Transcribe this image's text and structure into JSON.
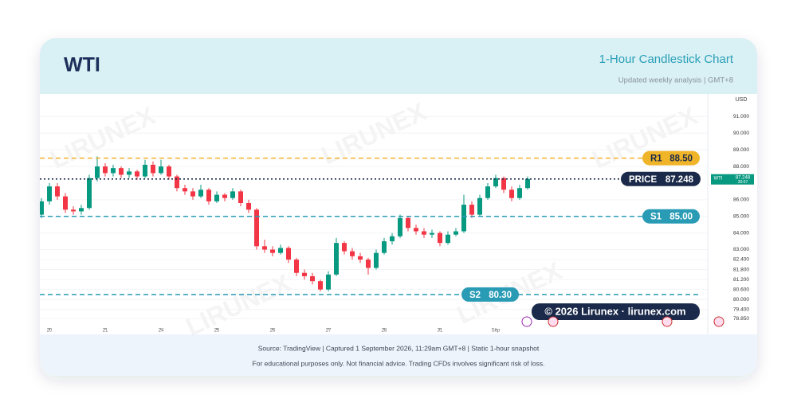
{
  "header": {
    "title": "WTI",
    "subtitle": "1-Hour Candlestick Chart",
    "note": "Updated weekly analysis | GMT+8"
  },
  "chart_data": {
    "type": "candlestick",
    "categories": [
      null,
      "20",
      null,
      null,
      null,
      null,
      null,
      null,
      "21",
      null,
      null,
      null,
      null,
      null,
      null,
      "24",
      null,
      null,
      null,
      null,
      null,
      null,
      "25",
      null,
      null,
      null,
      null,
      null,
      null,
      "26",
      null,
      null,
      null,
      null,
      null,
      null,
      "27",
      null,
      null,
      null,
      null,
      null,
      null,
      "28",
      null,
      null,
      null,
      null,
      null,
      null,
      "31",
      null,
      null,
      null,
      null,
      null,
      null,
      "Sep",
      null,
      null,
      null,
      null
    ],
    "open": [
      85.1,
      85.9,
      86.8,
      86.2,
      85.4,
      85.3,
      85.5,
      87.3,
      88.0,
      87.6,
      87.9,
      87.5,
      87.7,
      87.4,
      88.1,
      87.6,
      88.0,
      87.4,
      86.7,
      86.5,
      86.2,
      86.6,
      85.9,
      86.3,
      86.1,
      86.5,
      85.8,
      85.4,
      83.2,
      83.0,
      82.8,
      83.1,
      82.4,
      81.6,
      81.4,
      81.1,
      80.6,
      81.5,
      83.4,
      82.9,
      82.6,
      82.4,
      81.9,
      82.8,
      83.5,
      83.8,
      84.9,
      84.3,
      84.1,
      83.9,
      84.0,
      83.4,
      83.9,
      84.1,
      85.7,
      85.1,
      86.1,
      86.8,
      87.3,
      86.6,
      86.1,
      86.7
    ],
    "high": [
      86.1,
      87.0,
      87.0,
      86.4,
      85.6,
      85.7,
      87.5,
      88.6,
      88.2,
      88.1,
      88.0,
      87.9,
      87.8,
      88.4,
      88.3,
      88.4,
      88.1,
      87.5,
      86.9,
      86.7,
      86.9,
      86.7,
      86.5,
      86.4,
      86.7,
      86.6,
      86.0,
      85.5,
      83.6,
      83.2,
      83.3,
      83.2,
      82.5,
      81.8,
      81.6,
      81.2,
      81.7,
      83.7,
      83.5,
      83.1,
      82.8,
      82.5,
      83.0,
      83.7,
      84.0,
      85.1,
      85.0,
      84.5,
      84.3,
      84.2,
      84.1,
      84.1,
      84.3,
      86.3,
      85.9,
      86.3,
      87.0,
      87.5,
      87.4,
      86.8,
      86.9,
      87.4
    ],
    "low": [
      84.9,
      85.7,
      86.0,
      85.2,
      85.1,
      85.1,
      85.4,
      87.1,
      87.4,
      87.4,
      87.3,
      87.3,
      87.2,
      87.3,
      87.4,
      87.5,
      87.2,
      86.5,
      86.3,
      86.0,
      86.1,
      85.7,
      85.8,
      85.9,
      86.0,
      85.6,
      85.2,
      83.0,
      82.8,
      82.6,
      82.7,
      82.2,
      81.4,
      81.2,
      80.9,
      80.5,
      80.5,
      81.4,
      82.7,
      82.4,
      82.2,
      81.5,
      81.8,
      82.7,
      83.3,
      83.7,
      84.1,
      83.9,
      83.7,
      83.7,
      83.2,
      83.3,
      83.8,
      84.0,
      84.9,
      85.0,
      86.0,
      86.7,
      86.4,
      85.9,
      86.0,
      86.6
    ],
    "close": [
      85.9,
      86.8,
      86.2,
      85.4,
      85.3,
      85.5,
      87.3,
      88.0,
      87.6,
      87.9,
      87.5,
      87.7,
      87.4,
      88.1,
      87.6,
      88.0,
      87.4,
      86.7,
      86.5,
      86.2,
      86.6,
      85.9,
      86.3,
      86.1,
      86.5,
      85.8,
      85.4,
      83.2,
      83.0,
      82.8,
      83.1,
      82.4,
      81.6,
      81.4,
      81.1,
      80.6,
      81.5,
      83.4,
      82.9,
      82.6,
      82.4,
      81.9,
      82.8,
      83.5,
      83.8,
      84.9,
      84.3,
      84.1,
      83.9,
      84.0,
      83.4,
      83.9,
      84.1,
      85.7,
      85.1,
      86.1,
      86.8,
      87.3,
      86.6,
      86.1,
      86.7,
      87.25
    ],
    "up_color": "#089981",
    "down_color": "#f23645",
    "ylim": [
      77.9,
      92.36
    ],
    "yticks": [
      {
        "value": 91,
        "label": "91.000"
      },
      {
        "value": 90,
        "label": "90.000"
      },
      {
        "value": 89,
        "label": "89.000"
      },
      {
        "value": 88,
        "label": "88.000"
      },
      {
        "value": 86,
        "label": "86.000"
      },
      {
        "value": 85,
        "label": "85.000"
      },
      {
        "value": 84,
        "label": "84.000"
      },
      {
        "value": 83,
        "label": "83.000"
      },
      {
        "value": 82.4,
        "label": "82.400"
      },
      {
        "value": 81.8,
        "label": "81.800"
      },
      {
        "value": 81.2,
        "label": "81.200"
      },
      {
        "value": 80.6,
        "label": "80.600"
      },
      {
        "value": 80,
        "label": "80.000"
      },
      {
        "value": 79.4,
        "label": "79.400"
      },
      {
        "value": 78.85,
        "label": "78.850"
      }
    ],
    "grid": true,
    "currency": "USD",
    "symbol": "WTI",
    "countdown": "30:07",
    "levels": [
      {
        "label": "R1",
        "value": 88.5,
        "value_label": "88.50",
        "color": "#f0b429"
      },
      {
        "label": "PRICE",
        "value": 87.248,
        "color": "#1b2a4a"
      },
      {
        "label": "S1",
        "value": 85.0,
        "value_label": "85.00",
        "color": "#2a9bb5"
      },
      {
        "label": "S2",
        "value": 80.3,
        "value_label": "80.30",
        "color": "#2a9bb5"
      }
    ],
    "watermark": "LIRUNEX",
    "copyright": "© 2026 Lirunex · lirunex.com"
  },
  "footer": {
    "source": "Source: TradingView | Captured 1 September 2026, 11:29am GMT+8 | Static 1-hour snapshot",
    "disclaimer": "For educational purposes only. Not financial advice. Trading CFDs involves significant risk of loss."
  }
}
